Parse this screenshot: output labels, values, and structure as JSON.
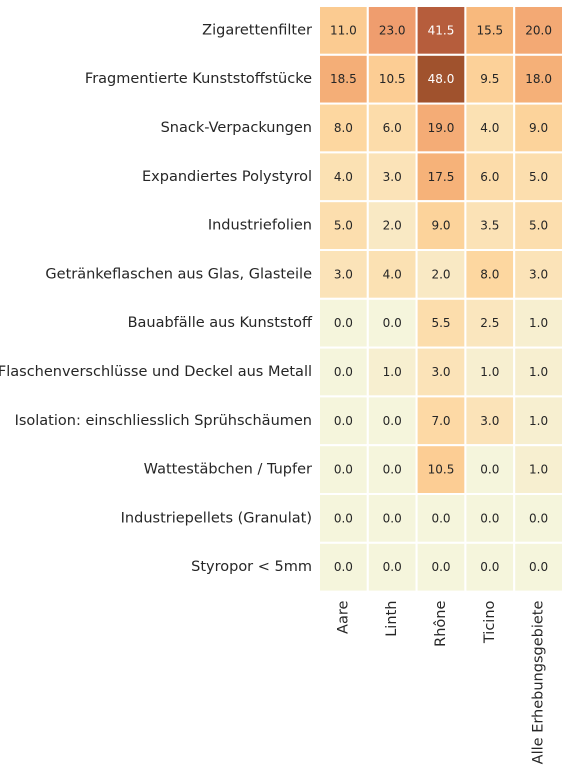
{
  "chart_data": {
    "type": "heatmap",
    "rows": [
      "Zigarettenfilter",
      "Fragmentierte Kunststoffstücke",
      "Snack-Verpackungen",
      "Expandiertes Polystyrol",
      "Industriefolien ",
      "Getränkeflaschen aus Glas, Glasteile ",
      "Bauabfälle aus Kunststoff ",
      "Flaschenverschlüsse und Deckel aus Metall",
      "Isolation: einschliesslich Sprühschäumen",
      "Wattestäbchen / Tupfer",
      "Industriepellets (Granulat) ",
      "Styropor < 5mm"
    ],
    "columns": [
      "Aare",
      "Linth",
      "Rhône",
      "Ticino",
      "Alle Erhebungsgebiete"
    ],
    "values": [
      [
        11.0,
        23.0,
        41.5,
        15.5,
        20.0
      ],
      [
        18.5,
        10.5,
        48.0,
        9.5,
        18.0
      ],
      [
        8.0,
        6.0,
        19.0,
        4.0,
        9.0
      ],
      [
        4.0,
        3.0,
        17.5,
        6.0,
        5.0
      ],
      [
        5.0,
        2.0,
        9.0,
        3.5,
        5.0
      ],
      [
        3.0,
        4.0,
        2.0,
        8.0,
        3.0
      ],
      [
        0.0,
        0.0,
        5.5,
        2.5,
        1.0
      ],
      [
        0.0,
        1.0,
        3.0,
        1.0,
        1.0
      ],
      [
        0.0,
        0.0,
        7.0,
        3.0,
        1.0
      ],
      [
        0.0,
        0.0,
        10.5,
        0.0,
        1.0
      ],
      [
        0.0,
        0.0,
        0.0,
        0.0,
        0.0
      ],
      [
        0.0,
        0.0,
        0.0,
        0.0,
        0.0
      ]
    ],
    "value_format": "one decimal",
    "colormap": [
      "#f5f5dc",
      "#fbe3b8",
      "#fdd7a0",
      "#f9bb7e",
      "#df7157",
      "#a0522d"
    ],
    "color_thresholds": [
      0,
      3,
      8,
      15,
      35,
      45
    ],
    "text_colors": {
      "dark": "#262626",
      "light": "#ffffff"
    },
    "cell_border_color": "#ffffff",
    "colorbar": false,
    "title": "",
    "xlabel": "",
    "ylabel": ""
  }
}
